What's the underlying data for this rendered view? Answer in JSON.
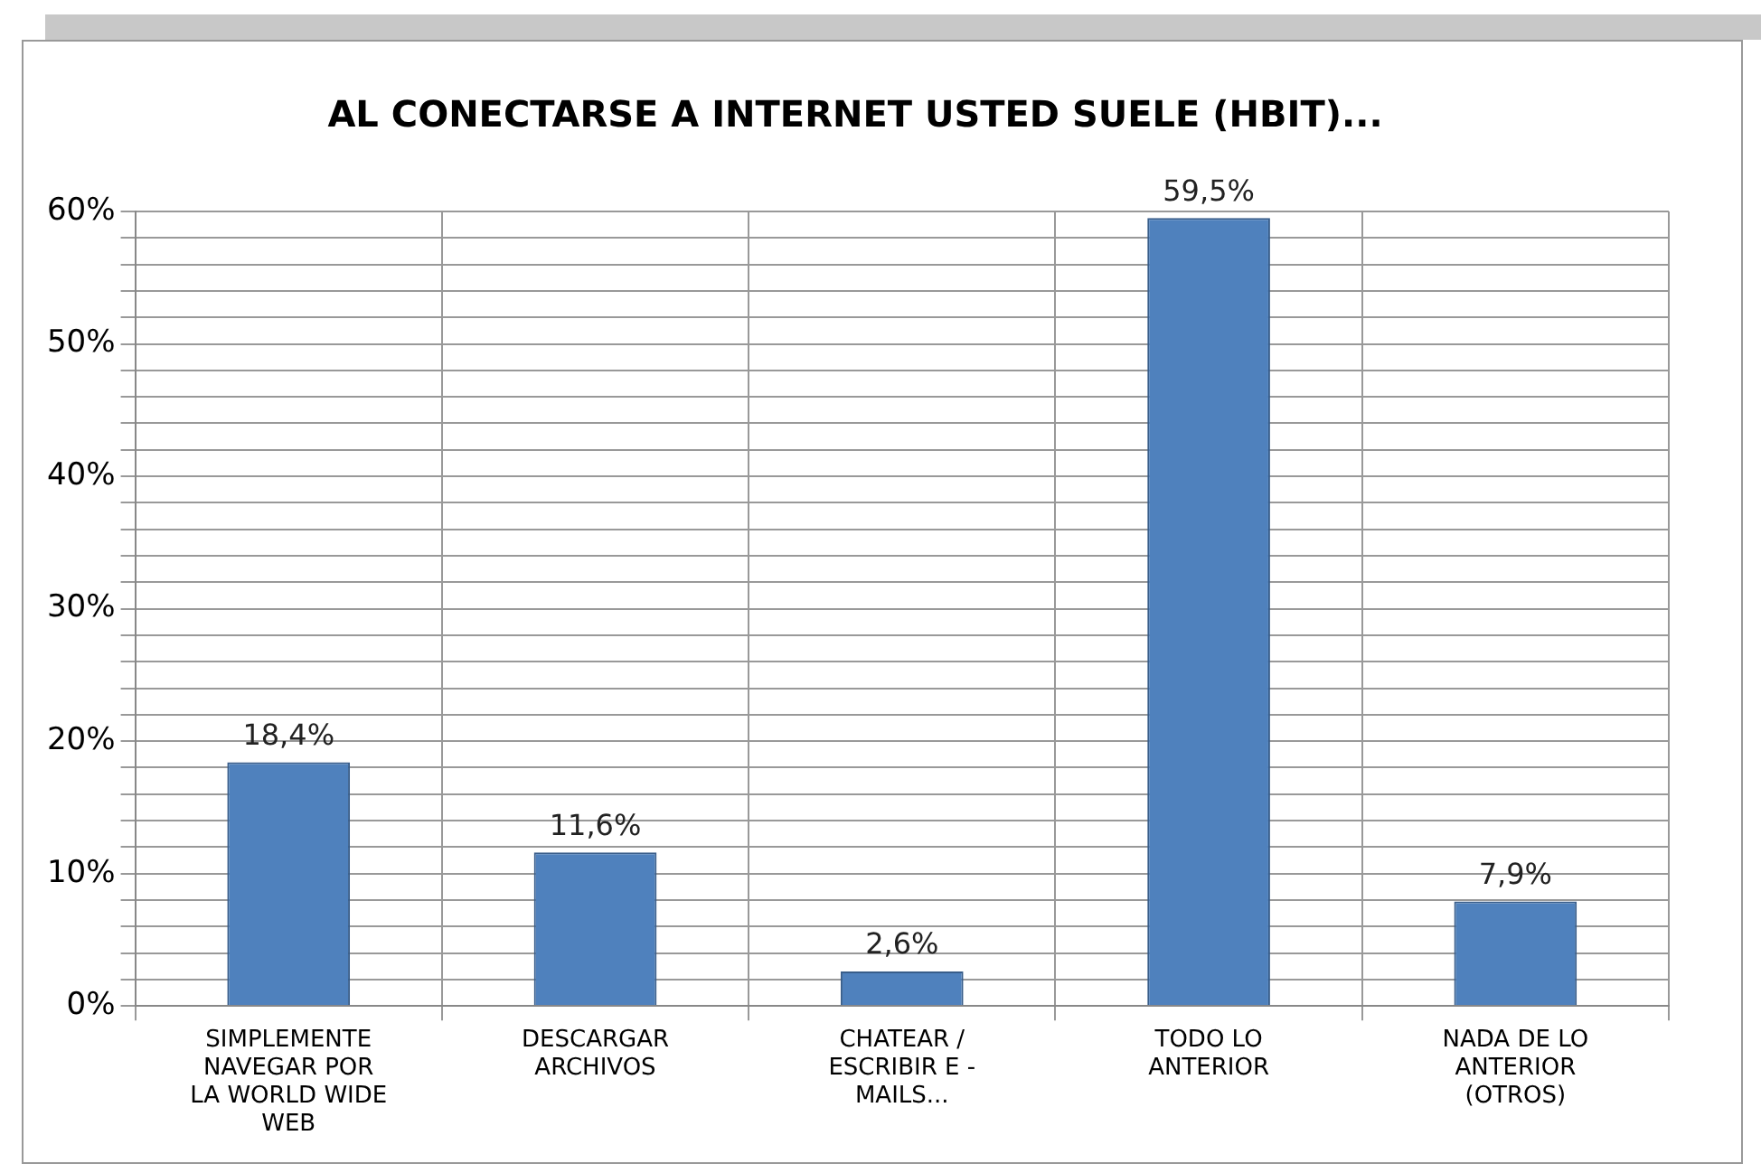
{
  "chart_data": {
    "type": "bar",
    "title": "AL CONECTARSE A INTERNET USTED SUELE (HBIT)...",
    "categories": [
      "SIMPLEMENTE NAVEGAR POR LA WORLD WIDE WEB",
      "DESCARGAR ARCHIVOS",
      "CHATEAR / ESCRIBIR E - MAILS...",
      "TODO LO ANTERIOR",
      "NADA DE LO ANTERIOR (OTROS)"
    ],
    "values": [
      18.4,
      11.6,
      2.6,
      59.5,
      7.9
    ],
    "value_labels": [
      "18,4%",
      "11,6%",
      "2,6%",
      "59,5%",
      "7,9%"
    ],
    "color": "#4f81bd",
    "ylim": [
      0,
      60
    ],
    "yticks": [
      {
        "value": 0,
        "label": "0%"
      },
      {
        "value": 2,
        "label": null
      },
      {
        "value": 4,
        "label": null
      },
      {
        "value": 6,
        "label": null
      },
      {
        "value": 8,
        "label": null
      },
      {
        "value": 10,
        "label": "10%"
      },
      {
        "value": 12,
        "label": null
      },
      {
        "value": 14,
        "label": null
      },
      {
        "value": 16,
        "label": null
      },
      {
        "value": 18,
        "label": null
      },
      {
        "value": 20,
        "label": "20%"
      },
      {
        "value": 22,
        "label": null
      },
      {
        "value": 24,
        "label": null
      },
      {
        "value": 26,
        "label": null
      },
      {
        "value": 28,
        "label": null
      },
      {
        "value": 30,
        "label": "30%"
      },
      {
        "value": 32,
        "label": null
      },
      {
        "value": 34,
        "label": null
      },
      {
        "value": 36,
        "label": null
      },
      {
        "value": 38,
        "label": null
      },
      {
        "value": 40,
        "label": "40%"
      },
      {
        "value": 42,
        "label": null
      },
      {
        "value": 44,
        "label": null
      },
      {
        "value": 46,
        "label": null
      },
      {
        "value": 48,
        "label": null
      },
      {
        "value": 50,
        "label": "50%"
      },
      {
        "value": 52,
        "label": null
      },
      {
        "value": 54,
        "label": null
      },
      {
        "value": 56,
        "label": null
      },
      {
        "value": 58,
        "label": null
      },
      {
        "value": 60,
        "label": "60%"
      }
    ],
    "grid": true
  }
}
